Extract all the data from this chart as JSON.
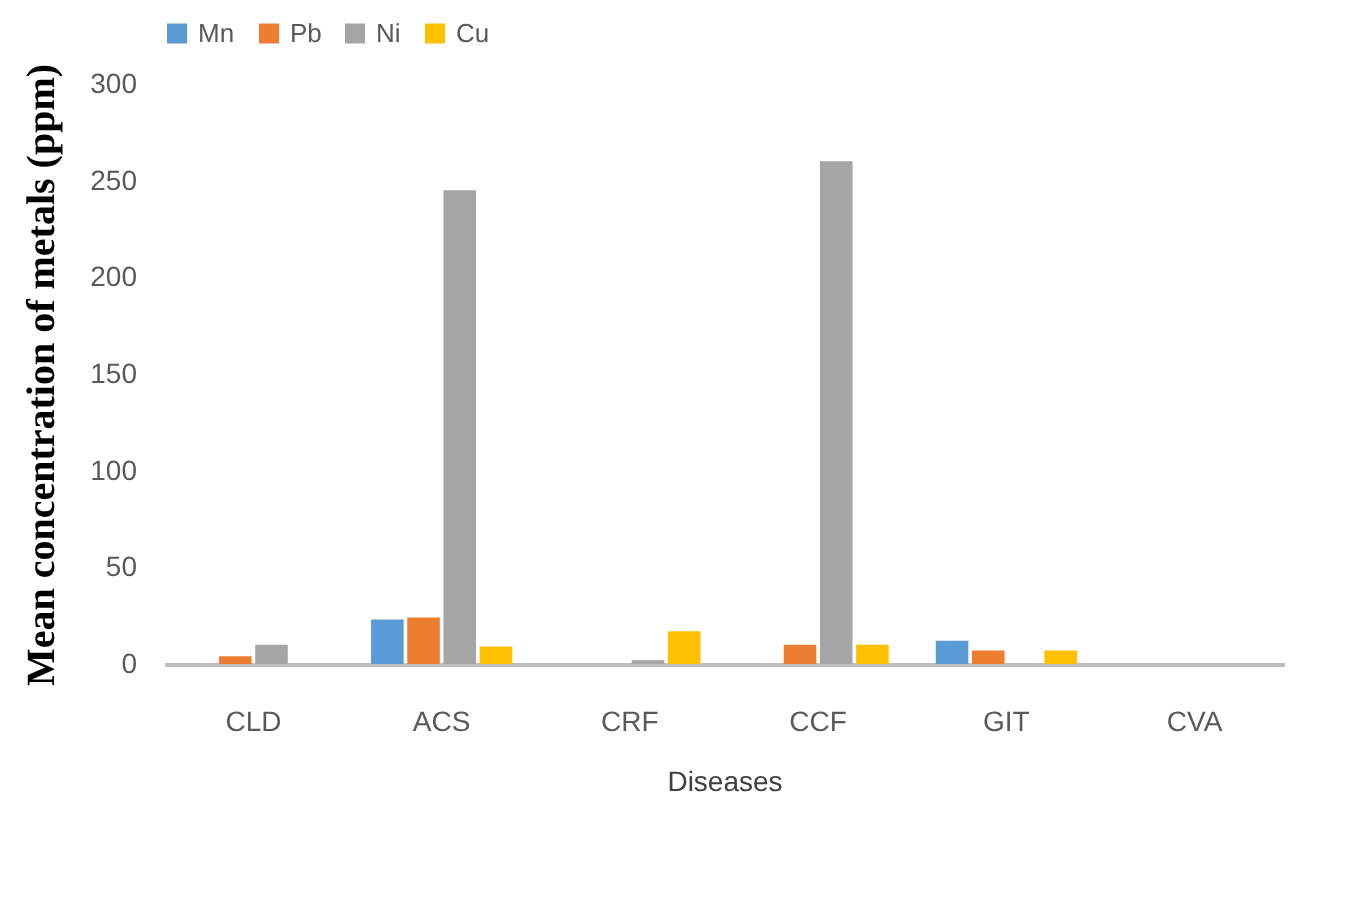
{
  "chart_data": {
    "type": "bar",
    "xlabel": "Diseases",
    "ylabel": "Mean concentration of metals (ppm)",
    "categories": [
      "CLD",
      "ACS",
      "CRF",
      "CCF",
      "GIT",
      "CVA"
    ],
    "series": [
      {
        "name": "Mn",
        "color": "#5b9bd5",
        "values": [
          0,
          23,
          0,
          0,
          12,
          0
        ]
      },
      {
        "name": "Pb",
        "color": "#ed7d31",
        "values": [
          4,
          24,
          0,
          10,
          7,
          0
        ]
      },
      {
        "name": "Ni",
        "color": "#a5a5a5",
        "values": [
          10,
          245,
          2,
          260,
          0,
          0
        ]
      },
      {
        "name": "Cu",
        "color": "#ffc000",
        "values": [
          0,
          9,
          17,
          10,
          7,
          0
        ]
      }
    ],
    "ylim": [
      0,
      300
    ],
    "yticks": [
      0,
      50,
      100,
      150,
      200,
      250,
      300
    ],
    "grid": false,
    "legend": "top"
  }
}
